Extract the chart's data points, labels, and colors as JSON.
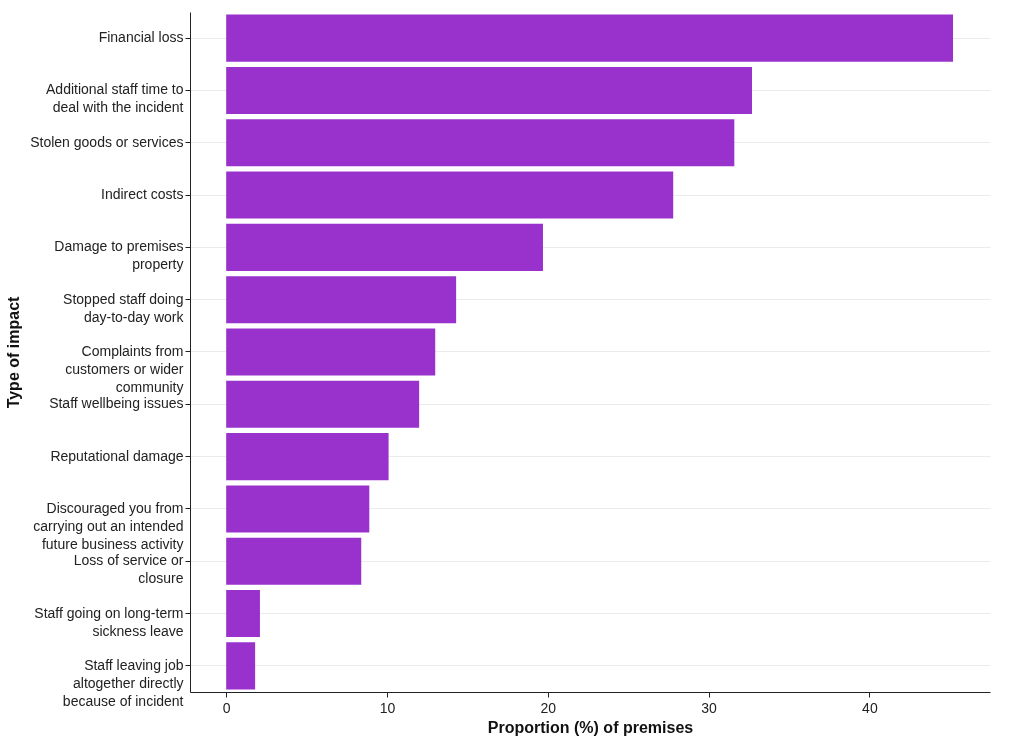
{
  "chart_data": {
    "type": "bar",
    "orientation": "horizontal",
    "xlabel": "Proportion (%) of premises",
    "ylabel": "Type of impact",
    "categories": [
      "Financial loss",
      "Additional staff time to deal with the incident",
      "Stolen goods or services",
      "Indirect costs",
      "Damage to premises property",
      "Stopped staff doing day-to-day work",
      "Complaints from customers or wider community",
      "Staff wellbeing issues",
      "Reputational damage",
      "Discouraged you from carrying out an intended future business activity",
      "Loss of service or closure",
      "Staff going on long-term sickness leave",
      "Staff leaving job altogether directly because of incident"
    ],
    "values": [
      45.2,
      32.7,
      31.6,
      27.8,
      19.7,
      14.3,
      13.0,
      12.0,
      10.1,
      8.9,
      8.4,
      2.1,
      1.8
    ],
    "color": "#9932cc",
    "xlim": [
      -2.25,
      47.5
    ],
    "xticks": [
      0,
      10,
      20,
      30,
      40
    ],
    "grid": "y"
  }
}
